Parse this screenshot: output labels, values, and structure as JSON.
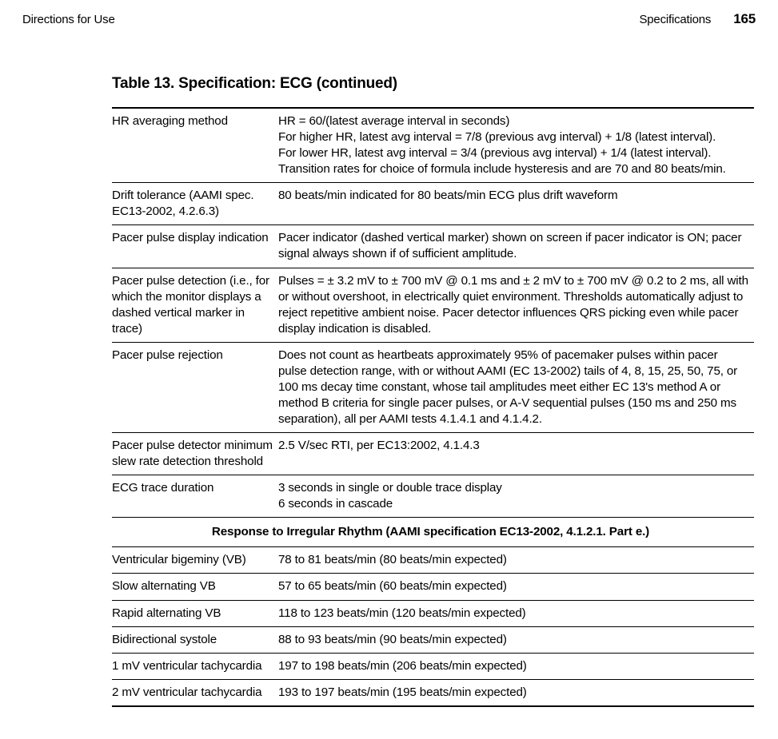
{
  "header": {
    "left": "Directions for Use",
    "section": "Specifications",
    "page": "165"
  },
  "table": {
    "caption": "Table 13.  Specification: ECG (continued)",
    "rows": [
      {
        "label": "HR averaging method",
        "value": "HR = 60/(latest average interval in seconds)\nFor higher HR, latest avg interval = 7/8 (previous avg interval) + 1/8 (latest interval).\nFor lower HR, latest avg interval = 3/4 (previous avg interval) + 1/4 (latest interval).\nTransition rates for choice of formula include hysteresis and are 70 and 80 beats/min."
      },
      {
        "label": "Drift tolerance (AAMI spec. EC13-2002, 4.2.6.3)",
        "value": "80 beats/min indicated for 80 beats/min ECG plus drift waveform"
      },
      {
        "label": "Pacer pulse display indication",
        "value": "Pacer indicator (dashed vertical marker) shown on screen if pacer indicator is ON; pacer signal always shown if of sufficient amplitude."
      },
      {
        "label": "Pacer pulse detection (i.e., for which the monitor displays a dashed vertical marker in trace)",
        "value": "Pulses = ± 3.2 mV to ± 700 mV @ 0.1 ms and ± 2 mV to ± 700 mV @ 0.2 to 2 ms, all with or without overshoot, in electrically quiet environment. Thresholds automatically adjust to reject repetitive ambient noise. Pacer detector influences QRS picking even while pacer display indication is disabled."
      },
      {
        "label": "Pacer pulse rejection",
        "value": "Does not count as heartbeats approximately 95% of pacemaker pulses within pacer pulse detection range, with or without AAMI (EC 13-2002) tails of 4, 8, 15, 25, 50, 75, or 100 ms decay time constant, whose tail amplitudes meet either EC 13's method A or method B criteria for single pacer pulses, or A-V sequential pulses (150 ms and 250 ms separation), all per AAMI tests 4.1.4.1 and 4.1.4.2."
      },
      {
        "label": "Pacer pulse detector minimum slew rate detection threshold",
        "value": "2.5 V/sec RTI, per EC13:2002, 4.1.4.3"
      },
      {
        "label": "ECG trace duration",
        "value": "3 seconds in single or double trace display\n6 seconds in cascade"
      }
    ],
    "section_header": "Response to Irregular Rhythm (AAMI specification EC13-2002, 4.1.2.1. Part e.)",
    "rows2": [
      {
        "label": "Ventricular bigeminy (VB)",
        "value": "78 to 81 beats/min (80 beats/min expected)"
      },
      {
        "label": "Slow alternating VB",
        "value": "57 to 65 beats/min (60 beats/min expected)"
      },
      {
        "label": "Rapid alternating VB",
        "value": "118 to 123 beats/min (120 beats/min expected)"
      },
      {
        "label": "Bidirectional systole",
        "value": "88 to 93 beats/min (90 beats/min expected)"
      },
      {
        "label": "1 mV ventricular tachycardia",
        "value": "197 to 198 beats/min (206 beats/min expected)"
      },
      {
        "label": "2 mV ventricular tachycardia",
        "value": "193 to 197 beats/min (195 beats/min expected)"
      }
    ]
  }
}
